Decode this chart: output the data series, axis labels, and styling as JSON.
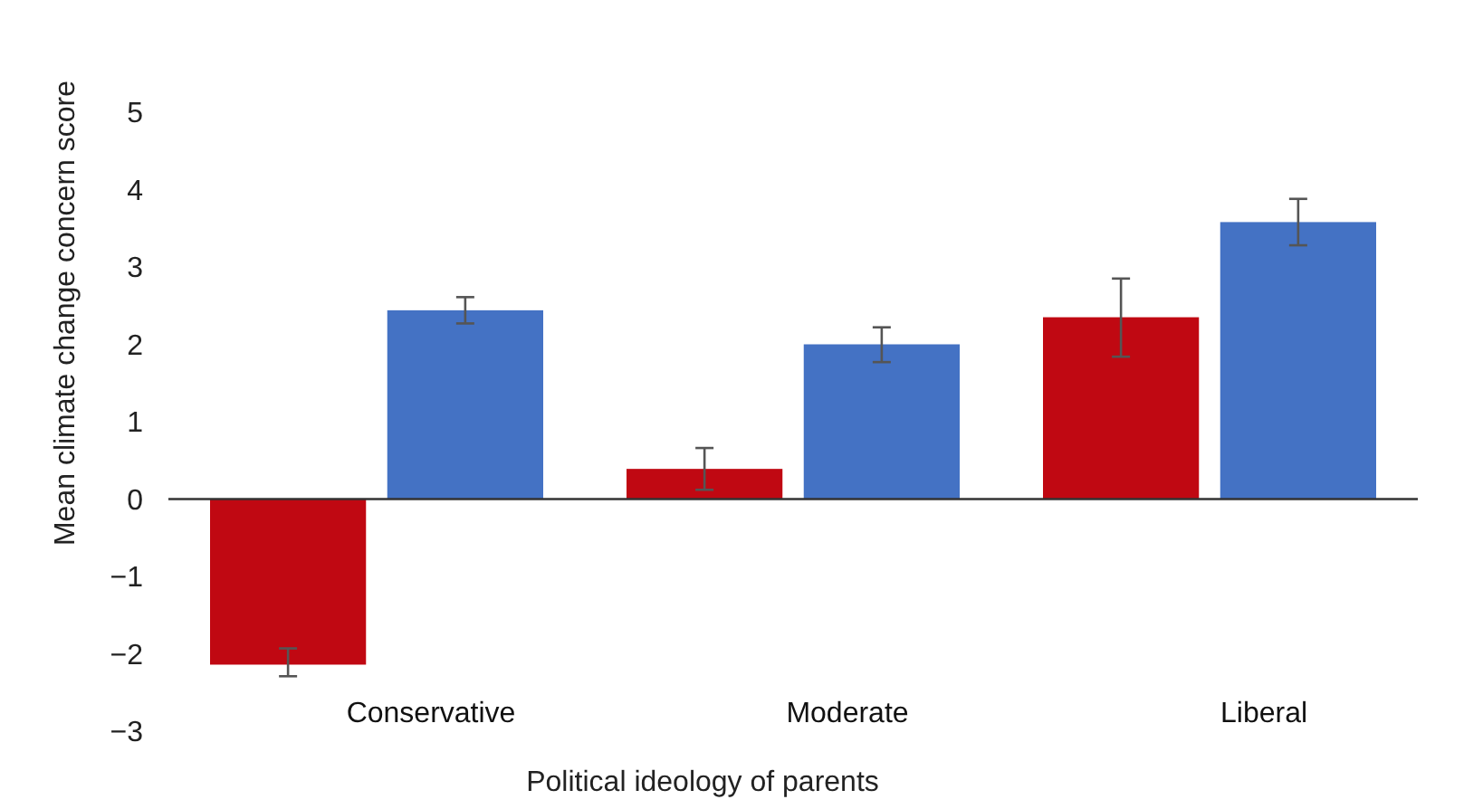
{
  "chart_data": {
    "type": "bar",
    "xlabel": "Political ideology of parents",
    "ylabel": "Mean climate change concern score",
    "categories": [
      "Conservative",
      "Moderate",
      "Liberal"
    ],
    "series": [
      {
        "color": "#c00812",
        "values": [
          -2.14,
          0.39,
          2.35
        ],
        "errors": [
          [
            -2.29,
            -1.93
          ],
          [
            0.12,
            0.66
          ],
          [
            1.84,
            2.85
          ]
        ]
      },
      {
        "color": "#4472c4",
        "values": [
          2.44,
          2.0,
          3.58
        ],
        "errors": [
          [
            2.27,
            2.61
          ],
          [
            1.77,
            2.22
          ],
          [
            3.28,
            3.88
          ]
        ]
      }
    ],
    "ylim": [
      -3,
      5
    ],
    "yticks": [
      {
        "value": -3,
        "label": "−3"
      },
      {
        "value": -2,
        "label": "−2"
      },
      {
        "value": -1,
        "label": "−1"
      },
      0,
      1,
      2,
      3,
      4,
      5
    ]
  }
}
